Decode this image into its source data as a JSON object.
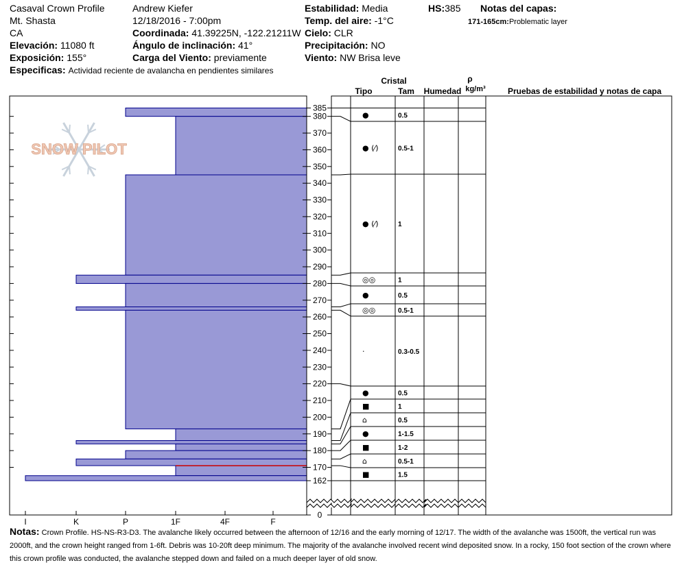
{
  "header": {
    "profile_name": "Casaval Crown Profile",
    "location": "Mt. Shasta",
    "state": "CA",
    "elevation_label": "Elevación:",
    "elevation_value": "11080 ft",
    "exposure_label": "Exposición:",
    "exposure_value": "155°",
    "specifics_label": "Especificas:",
    "specifics_value": "Actividad reciente de avalancha en pendientes similares",
    "observer": "Andrew Kiefer",
    "datetime": "12/18/2016 - 7:00pm",
    "coord_label": "Coordinada:",
    "coord_value": "41.39225N, -122.21211W",
    "slope_label": "Ángulo de inclinación:",
    "slope_value": "41°",
    "wind_load_label": "Carga del Viento:",
    "wind_load_value": "previamente",
    "stability_label": "Estabilidad:",
    "stability_value": "Media",
    "air_temp_label": "Temp. del aire:",
    "air_temp_value": "-1°C",
    "sky_label": "Cielo:",
    "sky_value": "CLR",
    "precip_label": "Precipitación:",
    "precip_value": "NO",
    "wind_label": "Viento:",
    "wind_value": "NW Brisa leve",
    "hs_label": "HS:",
    "hs_value": "385",
    "layer_notes_title": "Notas del capas:",
    "layer_note_range": "171-165cm:",
    "layer_note_text": "Problematic layer"
  },
  "watermark": "SNOW PILOT",
  "columns": {
    "crystal": "Cristal",
    "type": "Tipo",
    "size": "Tam",
    "moisture": "Humedad",
    "density_symbol": "ρ",
    "density_unit": "kg/m³",
    "tests": "Pruebas de estabilidad y notas de capa"
  },
  "colors": {
    "layer_fill": "#9999d6",
    "layer_edge": "#00008b",
    "weak_layer": "#cc0000"
  },
  "chart_data": {
    "type": "snow_profile",
    "hardness_ticks": [
      "I",
      "K",
      "P",
      "1F",
      "4F",
      "F"
    ],
    "height_ticks": [
      "385",
      "380",
      "370",
      "360",
      "350",
      "340",
      "330",
      "320",
      "310",
      "300",
      "290",
      "280",
      "270",
      "260",
      "250",
      "240",
      "230",
      "220",
      "210",
      "200",
      "190",
      "180",
      "170",
      "162",
      "0"
    ],
    "hardness_bars": [
      {
        "top": 385,
        "bottom": 380,
        "hardness": "P"
      },
      {
        "top": 380,
        "bottom": 345,
        "hardness": "1F"
      },
      {
        "top": 345,
        "bottom": 285,
        "hardness": "P"
      },
      {
        "top": 285,
        "bottom": 280,
        "hardness": "K"
      },
      {
        "top": 280,
        "bottom": 266,
        "hardness": "P"
      },
      {
        "top": 266,
        "bottom": 264,
        "hardness": "K"
      },
      {
        "top": 264,
        "bottom": 193,
        "hardness": "P"
      },
      {
        "top": 193,
        "bottom": 186,
        "hardness": "1F"
      },
      {
        "top": 186,
        "bottom": 184,
        "hardness": "K"
      },
      {
        "top": 184,
        "bottom": 180,
        "hardness": "1F"
      },
      {
        "top": 180,
        "bottom": 175,
        "hardness": "P"
      },
      {
        "top": 175,
        "bottom": 171,
        "hardness": "K"
      },
      {
        "top": 171,
        "bottom": 165,
        "hardness": "1F"
      },
      {
        "top": 165,
        "bottom": 162,
        "hardness": "I"
      }
    ],
    "weak_layer_cm": 171,
    "layers": [
      {
        "top": 385,
        "bottom": 380,
        "type": "●",
        "size": "0.5"
      },
      {
        "top": 380,
        "bottom": 345,
        "type": "● (⁄)",
        "size": "0.5-1"
      },
      {
        "top": 345,
        "bottom": 285,
        "type": "● (⁄)",
        "size": "1"
      },
      {
        "top": 285,
        "bottom": 280,
        "type": "◎◎",
        "size": "1"
      },
      {
        "top": 280,
        "bottom": 266,
        "type": "●",
        "size": "0.5"
      },
      {
        "top": 266,
        "bottom": 264,
        "type": "◎◎",
        "size": "0.5-1"
      },
      {
        "top": 264,
        "bottom": 220,
        "type": "·",
        "size": "0.3-0.5"
      },
      {
        "top": 220,
        "bottom": 193,
        "type": "●",
        "size": "0.5"
      },
      {
        "top": 193,
        "bottom": 186,
        "type": "■",
        "size": "1"
      },
      {
        "top": 186,
        "bottom": 184,
        "type": "⌂",
        "size": "0.5"
      },
      {
        "top": 184,
        "bottom": 180,
        "type": "●",
        "size": "1-1.5"
      },
      {
        "top": 180,
        "bottom": 175,
        "type": "■",
        "size": "1-2"
      },
      {
        "top": 175,
        "bottom": 171,
        "type": "⌂",
        "size": "0.5-1"
      },
      {
        "top": 171,
        "bottom": 162,
        "type": "■",
        "size": "1.5"
      }
    ]
  },
  "notes": {
    "label": "Notas:",
    "text": "Crown Profile.  HS-NS-R3-D3.  The avalanche likely occurred between the afternoon of 12/16 and the early morning of 12/17.  The width of the avalanche was 1500ft, the vertical run was 2000ft, and the crown height ranged from 1-6ft.  Debris was 10-20ft deep minimum.  The majority of the avalanche involved recent wind deposited snow.  In a rocky, 150 foot section of the crown where this crown profile was conducted, the avalanche stepped down and failed on a much deeper layer of old snow."
  }
}
